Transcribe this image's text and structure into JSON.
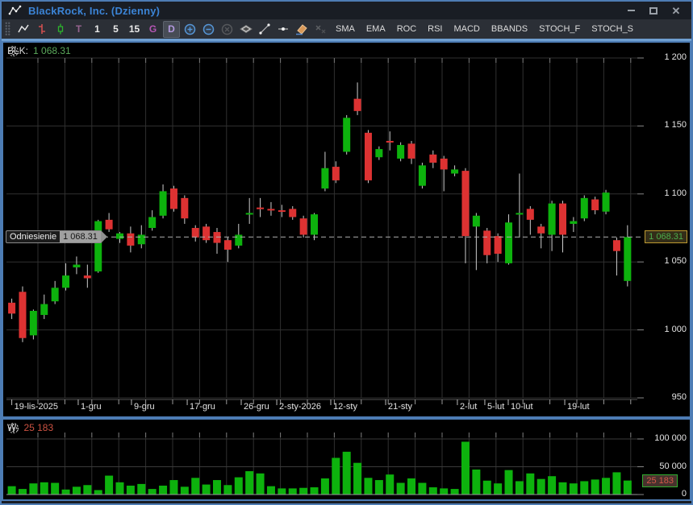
{
  "window": {
    "title": "BlackRock, Inc.  (Dzienny)",
    "icons": [
      "app-logo-line-chart",
      "minimize",
      "maximize",
      "close"
    ]
  },
  "toolbar": {
    "chart_type_icons": [
      "line-chart",
      "ohlc-bars",
      "candlestick"
    ],
    "intervals": [
      "T",
      "1",
      "5",
      "15",
      "G",
      "D"
    ],
    "selected_interval": "D",
    "tool_icons": [
      "zoom-in",
      "zoom-out",
      "zoom-reset",
      "indicators",
      "trend-line",
      "horizontal-line",
      "eraser",
      "remove-drawings"
    ],
    "indicators": [
      "SMA",
      "EMA",
      "ROC",
      "RSI",
      "MACD",
      "BBANDS",
      "STOCH_F",
      "STOCH_S"
    ]
  },
  "price_panel": {
    "pan_icon": "pan-move",
    "instrument": "BLK:",
    "last_value": "1 068.31",
    "reference_label": "Odniesienie",
    "reference_value": "1 068.31"
  },
  "volume_panel": {
    "pan_icon": "pan-move",
    "label": "W:",
    "last_value": "25 183",
    "badge_value": "25 183"
  },
  "colors": {
    "up": "#0db20d",
    "down": "#dd3232",
    "wick": "#cccccc",
    "grid": "#303030",
    "tick": "#999999",
    "reference_line": "#b0b0b0",
    "title_blue": "#3b84d6",
    "frame_blue": "#4d7cb4",
    "price_value_green": "#5aa85a",
    "volume_value_red": "#cc5242"
  },
  "chart_data": {
    "type": "candlestick",
    "symbol": "BLK",
    "company": "BlackRock, Inc.",
    "interval_label": "Dzienny",
    "reference_price": 1068.31,
    "last_close": 1068.31,
    "last_volume": 25183,
    "price_axis": {
      "ylim": [
        945,
        1212
      ],
      "ticks": [
        {
          "value": 1200,
          "label": "1 200"
        },
        {
          "value": 1150,
          "label": "1 150"
        },
        {
          "value": 1100,
          "label": "1 100"
        },
        {
          "value": 1050,
          "label": "1 050"
        },
        {
          "value": 1000,
          "label": "1 000"
        },
        {
          "value": 950,
          "label": "950"
        }
      ]
    },
    "volume_axis": {
      "ylim": [
        0,
        105000
      ],
      "ticks": [
        {
          "value": 100000,
          "label": "100 000"
        },
        {
          "value": 50000,
          "label": "50 000"
        },
        {
          "value": 0,
          "label": "0"
        }
      ]
    },
    "x_axis_ticks": [
      {
        "label": "19-lis-2025",
        "i": 0
      },
      {
        "label": "1-gru",
        "i": 6.15
      },
      {
        "label": "9-gru",
        "i": 11.08
      },
      {
        "label": "17-gru",
        "i": 16.24
      },
      {
        "label": "26-gru",
        "i": 21.24
      },
      {
        "label": "2-sty-2026",
        "i": 24.53
      },
      {
        "label": "12-sty",
        "i": 29.53
      },
      {
        "label": "21-sty",
        "i": 34.61
      },
      {
        "label": "2-lut",
        "i": 41.25
      },
      {
        "label": "5-lut",
        "i": 43.79
      },
      {
        "label": "10-lut",
        "i": 45.96
      },
      {
        "label": "19-lut",
        "i": 51.19
      }
    ],
    "candles_format": [
      "open",
      "high",
      "low",
      "close",
      "volume"
    ],
    "candles": [
      [
        1020,
        1023,
        1008,
        1012,
        15000
      ],
      [
        1028,
        1032,
        991,
        994,
        10000
      ],
      [
        996,
        1015,
        993,
        1014,
        20000
      ],
      [
        1011,
        1026,
        1008,
        1019,
        22000
      ],
      [
        1021,
        1036,
        1019,
        1031,
        21000
      ],
      [
        1031,
        1049,
        1029,
        1040,
        9000
      ],
      [
        1046,
        1054,
        1041,
        1048,
        14000
      ],
      [
        1040,
        1048,
        1031,
        1038,
        17000
      ],
      [
        1043,
        1081,
        1042,
        1080,
        8000
      ],
      [
        1081,
        1086,
        1072,
        1074,
        34000
      ],
      [
        1067,
        1072,
        1064,
        1071,
        22000
      ],
      [
        1071,
        1076,
        1057,
        1062,
        16000
      ],
      [
        1063,
        1077,
        1060,
        1070,
        19000
      ],
      [
        1075,
        1088,
        1073,
        1083,
        10000
      ],
      [
        1084,
        1107,
        1082,
        1102,
        16000
      ],
      [
        1104,
        1106,
        1087,
        1089,
        26000
      ],
      [
        1097,
        1099,
        1078,
        1082,
        14000
      ],
      [
        1075,
        1077,
        1065,
        1068,
        30000
      ],
      [
        1076,
        1078,
        1064,
        1066,
        18000
      ],
      [
        1072,
        1075,
        1056,
        1064,
        26000
      ],
      [
        1066,
        1068,
        1050,
        1059,
        17000
      ],
      [
        1062,
        1078,
        1060,
        1070,
        31000
      ],
      [
        1086,
        1097,
        1078,
        1086,
        42000
      ],
      [
        1090,
        1097,
        1083,
        1089,
        38000
      ],
      [
        1089,
        1094,
        1084,
        1088,
        15000
      ],
      [
        1088,
        1092,
        1083,
        1087,
        11000
      ],
      [
        1089,
        1091,
        1081,
        1083,
        11000
      ],
      [
        1082,
        1084,
        1068,
        1070,
        12000
      ],
      [
        1070,
        1086,
        1066,
        1085,
        13000
      ],
      [
        1104,
        1131,
        1102,
        1119,
        29000
      ],
      [
        1120,
        1124,
        1108,
        1110,
        66000
      ],
      [
        1131,
        1158,
        1129,
        1156,
        77000
      ],
      [
        1170,
        1182,
        1158,
        1161,
        57000
      ],
      [
        1145,
        1147,
        1108,
        1110,
        30000
      ],
      [
        1127,
        1135,
        1125,
        1133,
        26000
      ],
      [
        1139,
        1146,
        1132,
        1138,
        36000
      ],
      [
        1126,
        1138,
        1124,
        1136,
        21000
      ],
      [
        1137,
        1139,
        1122,
        1126,
        29000
      ],
      [
        1106,
        1123,
        1104,
        1121,
        21000
      ],
      [
        1129,
        1132,
        1119,
        1123,
        13000
      ],
      [
        1126,
        1128,
        1102,
        1118,
        11000
      ],
      [
        1115,
        1121,
        1113,
        1118,
        10000
      ],
      [
        1117,
        1119,
        1049,
        1069,
        95000
      ],
      [
        1076,
        1086,
        1044,
        1084,
        45000
      ],
      [
        1073,
        1075,
        1049,
        1055,
        25000
      ],
      [
        1069,
        1071,
        1050,
        1056,
        20000
      ],
      [
        1049,
        1085,
        1048,
        1079,
        44000
      ],
      [
        1086,
        1115,
        1068,
        1086,
        24000
      ],
      [
        1089,
        1091,
        1070,
        1081,
        38000
      ],
      [
        1076,
        1078,
        1060,
        1071,
        28000
      ],
      [
        1070,
        1095,
        1058,
        1093,
        33000
      ],
      [
        1093,
        1095,
        1057,
        1070,
        22000
      ],
      [
        1078,
        1083,
        1072,
        1080,
        20000
      ],
      [
        1082,
        1099,
        1080,
        1097,
        24000
      ],
      [
        1096,
        1098,
        1085,
        1088,
        27000
      ],
      [
        1087,
        1103,
        1085,
        1101,
        30000
      ],
      [
        1066,
        1068,
        1040,
        1058,
        40000
      ],
      [
        1036,
        1077,
        1032,
        1068.31,
        25183
      ]
    ]
  }
}
